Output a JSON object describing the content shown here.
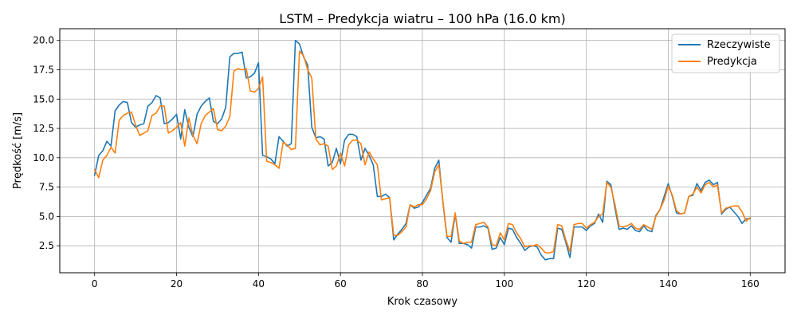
{
  "chart_data": {
    "type": "line",
    "title": "LSTM – Predykcja wiatru – 100 hPa (16.0 km)",
    "xlabel": "Krok czasowy",
    "ylabel": "Prędkość [m/s]",
    "xlim": [
      -8.5,
      168.5
    ],
    "ylim": [
      0.2,
      21.0
    ],
    "xticks": [
      0,
      20,
      40,
      60,
      80,
      100,
      120,
      140,
      160
    ],
    "yticks": [
      2.5,
      5.0,
      7.5,
      10.0,
      12.5,
      15.0,
      17.5,
      20.0
    ],
    "xtick_labels": [
      "0",
      "20",
      "40",
      "60",
      "80",
      "100",
      "120",
      "140",
      "160"
    ],
    "ytick_labels": [
      "2.5",
      "5.0",
      "7.5",
      "10.0",
      "12.5",
      "15.0",
      "17.5",
      "20.0"
    ],
    "grid": true,
    "legend_position": "top-right",
    "series": [
      {
        "name": "Rzeczywiste",
        "color": "#1f77b4",
        "values": [
          8.5,
          10.2,
          10.6,
          11.4,
          11.0,
          14.0,
          14.5,
          14.8,
          14.7,
          13.0,
          12.6,
          12.8,
          12.9,
          14.4,
          14.7,
          15.3,
          15.1,
          12.9,
          13.0,
          13.3,
          13.7,
          11.6,
          14.1,
          12.6,
          11.8,
          13.7,
          14.4,
          14.8,
          15.1,
          13.1,
          12.9,
          13.3,
          14.3,
          18.6,
          18.9,
          18.9,
          19.0,
          16.8,
          16.9,
          17.2,
          18.1,
          10.2,
          10.1,
          9.9,
          9.5,
          11.8,
          11.4,
          11.0,
          11.2,
          20.0,
          19.7,
          18.6,
          17.9,
          12.6,
          11.7,
          11.8,
          11.6,
          9.3,
          9.6,
          10.8,
          9.5,
          11.5,
          12.0,
          12.0,
          11.8,
          9.8,
          10.8,
          10.2,
          9.4,
          6.7,
          6.7,
          6.9,
          6.6,
          3.0,
          3.5,
          3.9,
          4.4,
          6.0,
          5.7,
          5.8,
          6.2,
          6.8,
          7.4,
          9.1,
          9.8,
          6.2,
          3.2,
          2.8,
          5.2,
          2.7,
          2.7,
          2.6,
          2.3,
          4.1,
          4.1,
          4.2,
          4.0,
          2.2,
          2.3,
          3.2,
          2.6,
          4.0,
          3.9,
          3.2,
          2.7,
          2.1,
          2.4,
          2.5,
          2.4,
          1.7,
          1.3,
          1.4,
          1.4,
          4.0,
          3.9,
          2.8,
          1.5,
          4.1,
          4.1,
          4.1,
          3.8,
          4.2,
          4.4,
          5.2,
          4.5,
          8.0,
          7.7,
          5.7,
          3.9,
          4.0,
          3.9,
          4.2,
          3.8,
          3.7,
          4.2,
          3.8,
          3.7,
          5.1,
          5.6,
          6.7,
          7.8,
          6.7,
          5.3,
          5.2,
          5.3,
          6.7,
          6.8,
          7.8,
          7.2,
          7.9,
          8.1,
          7.7,
          7.9,
          5.2,
          5.6,
          5.8,
          5.4,
          5.0,
          4.4,
          4.8,
          4.8
        ]
      },
      {
        "name": "Predykcja",
        "color": "#ff7f0e",
        "values": [
          9.0,
          8.3,
          9.8,
          10.2,
          10.9,
          10.4,
          13.2,
          13.6,
          13.8,
          13.9,
          12.8,
          11.9,
          12.1,
          12.3,
          13.6,
          13.8,
          14.4,
          14.4,
          12.1,
          12.3,
          12.6,
          13.0,
          11.0,
          13.4,
          11.9,
          11.2,
          12.9,
          13.6,
          13.9,
          14.2,
          12.4,
          12.3,
          12.7,
          13.5,
          17.4,
          17.6,
          17.5,
          17.6,
          15.7,
          15.6,
          15.9,
          16.9,
          9.7,
          9.6,
          9.4,
          9.1,
          11.3,
          11.1,
          10.7,
          10.8,
          19.1,
          18.7,
          17.5,
          16.8,
          11.6,
          11.1,
          11.2,
          11.0,
          9.0,
          9.3,
          10.4,
          9.3,
          11.1,
          11.5,
          11.5,
          11.2,
          9.4,
          10.5,
          9.9,
          9.4,
          6.4,
          6.5,
          6.6,
          3.4,
          3.4,
          3.7,
          4.1,
          6.0,
          5.8,
          6.0,
          6.0,
          6.5,
          7.2,
          8.8,
          9.4,
          6.3,
          3.3,
          3.3,
          5.3,
          2.9,
          2.7,
          2.8,
          2.8,
          4.3,
          4.4,
          4.5,
          4.1,
          2.6,
          2.5,
          3.6,
          3.0,
          4.4,
          4.3,
          3.6,
          3.1,
          2.4,
          2.5,
          2.5,
          2.6,
          2.3,
          1.9,
          1.9,
          2.0,
          4.3,
          4.2,
          3.0,
          2.0,
          4.3,
          4.4,
          4.4,
          4.0,
          4.3,
          4.5,
          5.0,
          5.2,
          7.9,
          7.5,
          6.0,
          4.2,
          4.1,
          4.2,
          4.4,
          4.0,
          3.9,
          4.3,
          4.1,
          3.9,
          5.0,
          5.6,
          6.4,
          7.6,
          6.8,
          5.5,
          5.2,
          5.3,
          6.7,
          6.9,
          7.5,
          7.0,
          7.7,
          7.9,
          7.5,
          7.7,
          5.3,
          5.7,
          5.8,
          5.9,
          5.9,
          5.4,
          4.6,
          4.9
        ]
      }
    ]
  }
}
